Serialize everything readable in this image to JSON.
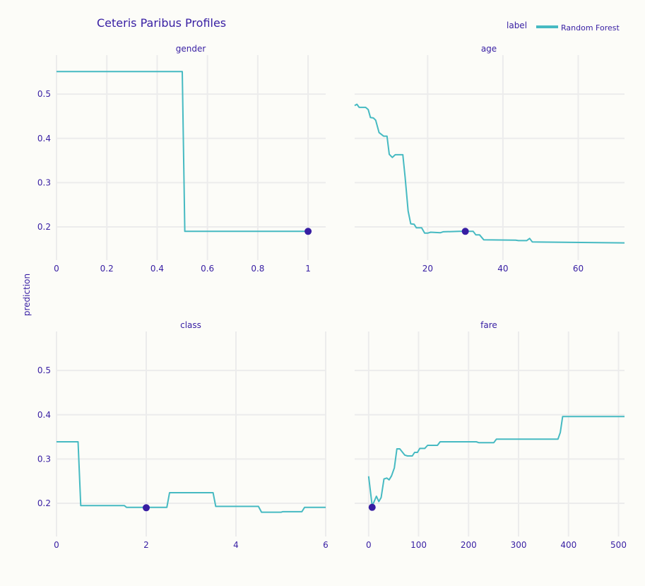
{
  "chart_data": {
    "type": "line",
    "title": "Ceteris Paribus Profiles",
    "ylabel": "prediction",
    "legend": {
      "title": "label",
      "placement": "top-right",
      "entries": [
        "Random Forest"
      ]
    },
    "colors": {
      "line": "#46bac2",
      "point": "#371ea3",
      "grid": "#ececec"
    },
    "ylim": [
      0.125,
      0.588
    ],
    "yticks": [
      0.2,
      0.3,
      0.4,
      0.5
    ],
    "ytick_labels": [
      "0.2",
      "0.3",
      "0.4",
      "0.5"
    ],
    "panels": [
      {
        "title": "gender",
        "xlim": [
          0,
          1.07
        ],
        "xticks": [
          0,
          0.2,
          0.4,
          0.6,
          0.8,
          1
        ],
        "xtick_labels": [
          "0",
          "0.2",
          "0.4",
          "0.6",
          "0.8",
          "1"
        ],
        "x": [
          0,
          0.5,
          0.51,
          1
        ],
        "y": [
          0.551,
          0.551,
          0.19,
          0.19
        ],
        "observation": {
          "x": 1,
          "y": 0.19
        }
      },
      {
        "title": "age",
        "xlim": [
          0.6,
          72.3
        ],
        "xticks": [
          20,
          40,
          60
        ],
        "xtick_labels": [
          "20",
          "40",
          "60"
        ],
        "x": [
          0.6,
          1.2,
          1.8,
          3.5,
          4.2,
          4.8,
          5.6,
          6.2,
          7.1,
          8.3,
          9.2,
          9.8,
          10.6,
          11.4,
          13.4,
          14.0,
          14.8,
          15.5,
          16.4,
          17.0,
          18.4,
          19.2,
          20.0,
          20.8,
          23.4,
          24.1,
          28.4,
          30.1,
          32.1,
          32.8,
          33.8,
          34.9,
          43.4,
          44.1,
          46.3,
          47.1,
          47.8,
          72.3
        ],
        "y": [
          0.474,
          0.477,
          0.47,
          0.47,
          0.465,
          0.447,
          0.446,
          0.441,
          0.413,
          0.405,
          0.405,
          0.364,
          0.357,
          0.363,
          0.363,
          0.313,
          0.236,
          0.207,
          0.206,
          0.198,
          0.198,
          0.186,
          0.186,
          0.188,
          0.187,
          0.189,
          0.19,
          0.19,
          0.19,
          0.182,
          0.182,
          0.171,
          0.17,
          0.169,
          0.169,
          0.174,
          0.166,
          0.164
        ],
        "observation": {
          "x": 30,
          "y": 0.19
        }
      },
      {
        "title": "class",
        "xlim": [
          0,
          6
        ],
        "xticks": [
          0,
          2,
          4,
          6
        ],
        "xtick_labels": [
          "0",
          "2",
          "4",
          "6"
        ],
        "x": [
          0,
          0.48,
          0.54,
          1.51,
          1.56,
          2.46,
          2.52,
          3.49,
          3.55,
          4.5,
          4.57,
          5.01,
          5.04,
          5.47,
          5.53,
          6
        ],
        "y": [
          0.339,
          0.339,
          0.195,
          0.195,
          0.191,
          0.191,
          0.224,
          0.224,
          0.193,
          0.193,
          0.18,
          0.18,
          0.181,
          0.181,
          0.191,
          0.191
        ],
        "observation": {
          "x": 2,
          "y": 0.19
        }
      },
      {
        "title": "fare",
        "xlim": [
          -28,
          512
        ],
        "xticks": [
          0,
          100,
          200,
          300,
          400,
          500
        ],
        "xtick_labels": [
          "0",
          "100",
          "200",
          "300",
          "400",
          "500"
        ],
        "x": [
          0,
          7,
          11,
          15.6,
          20.3,
          25,
          30.7,
          36.3,
          41,
          45.8,
          51.4,
          56.6,
          62.3,
          72.2,
          77.8,
          87.3,
          92,
          97.6,
          102.4,
          112.3,
          118,
          137.7,
          143,
          215.6,
          220.3,
          250.5,
          255.7,
          378.8,
          383.5,
          388.2,
          512
        ],
        "y": [
          0.261,
          0.194,
          0.204,
          0.216,
          0.204,
          0.213,
          0.255,
          0.257,
          0.253,
          0.262,
          0.28,
          0.323,
          0.323,
          0.309,
          0.307,
          0.307,
          0.315,
          0.315,
          0.324,
          0.324,
          0.331,
          0.331,
          0.339,
          0.339,
          0.337,
          0.337,
          0.345,
          0.345,
          0.36,
          0.396,
          0.396
        ],
        "observation": {
          "x": 7,
          "y": 0.191
        }
      }
    ]
  }
}
